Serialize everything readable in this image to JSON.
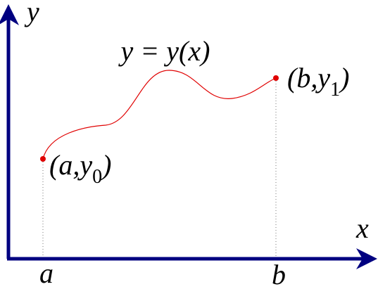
{
  "axes": {
    "y_label": "y",
    "x_label": "x"
  },
  "curve": {
    "label": "y = y(x)"
  },
  "points": [
    {
      "open": "(a,y",
      "sub": "0",
      "close": ")",
      "foot": "a"
    },
    {
      "open": "(b,y",
      "sub": "1",
      "close": ")",
      "foot": "b"
    }
  ]
}
